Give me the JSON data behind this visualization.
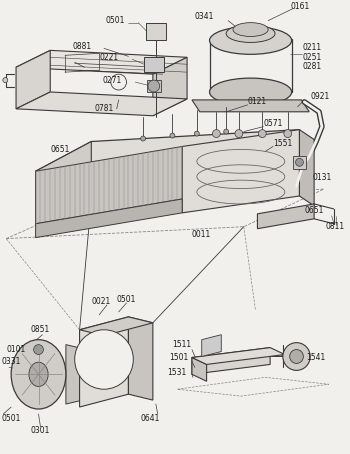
{
  "bg_color": "#f2f0ec",
  "lc": "#3a3a3a",
  "tc": "#1a1a1a",
  "figsize": [
    3.5,
    4.54
  ],
  "dpi": 100
}
